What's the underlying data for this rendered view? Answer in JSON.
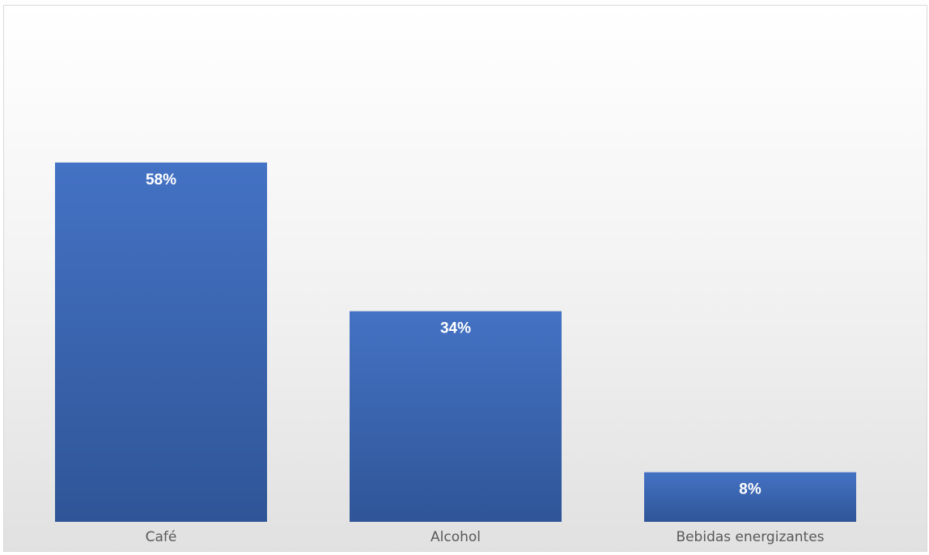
{
  "chart_data": {
    "type": "bar",
    "categories": [
      "Café",
      "Alcohol",
      "Bebidas energizantes"
    ],
    "values": [
      58,
      34,
      8
    ],
    "data_labels": [
      "58%",
      "34%",
      "8%"
    ],
    "title": "",
    "xlabel": "",
    "ylabel": "",
    "ylim": [
      0,
      70
    ],
    "grid": false,
    "legend": "none",
    "colors": {
      "bar_top": "#4472C4",
      "bar_bottom": "#2F5597",
      "data_label": "#FFFFFF",
      "tick_label": "#595959",
      "background_top": "#FFFFFF",
      "background_bottom": "#E1E1E1"
    }
  }
}
